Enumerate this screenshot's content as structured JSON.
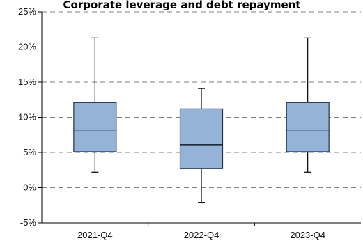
{
  "chart_data": {
    "type": "box",
    "title": "Corporate leverage and debt repayment",
    "categories": [
      "2021-Q4",
      "2022-Q4",
      "2023-Q4"
    ],
    "series": [
      {
        "boxes": [
          {
            "whisker_low": 2.2,
            "q1": 5.1,
            "median": 8.2,
            "q3": 12.1,
            "whisker_high": 21.3
          },
          {
            "whisker_low": -2.1,
            "q1": 2.7,
            "median": 6.1,
            "q3": 11.2,
            "whisker_high": 14.1
          },
          {
            "whisker_low": 2.2,
            "q1": 5.1,
            "median": 8.2,
            "q3": 12.1,
            "whisker_high": 21.3
          }
        ]
      }
    ],
    "y_ticks": [
      {
        "value": 25,
        "label": "25%"
      },
      {
        "value": 20,
        "label": "20%"
      },
      {
        "value": 15,
        "label": "15%"
      },
      {
        "value": 10,
        "label": "10%"
      },
      {
        "value": 5,
        "label": "5%"
      },
      {
        "value": 0,
        "label": "0%"
      },
      {
        "value": -5,
        "label": "-5%"
      }
    ],
    "ylim": [
      -5,
      25
    ],
    "grid": true,
    "box_color": "#95b3d7",
    "edge_color": "#1f2f4a",
    "grid_color": "#808080",
    "axis_color": "#000000"
  }
}
